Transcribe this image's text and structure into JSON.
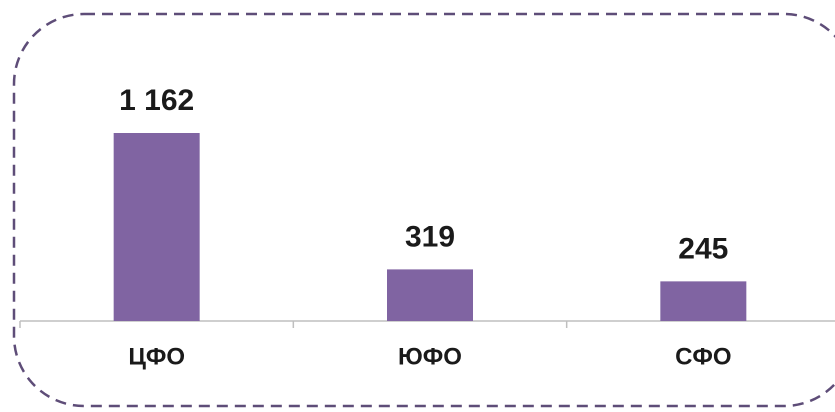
{
  "chart_data": {
    "type": "bar",
    "categories": [
      "ЦФО",
      "ЮФО",
      "СФО"
    ],
    "values": [
      1162,
      319,
      245
    ],
    "value_labels": [
      "1 162",
      "319",
      "245"
    ],
    "color": "#8064a2"
  }
}
